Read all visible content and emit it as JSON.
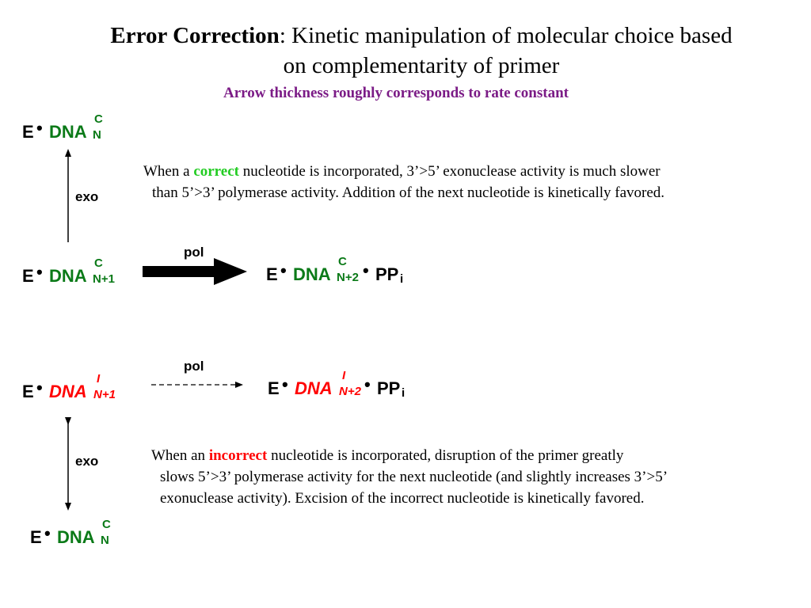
{
  "title": {
    "bold": "Error Correction",
    "rest_line1": ": Kinetic manipulation of molecular choice based",
    "line2": "on complementarity of primer"
  },
  "subtitle": "Arrow thickness roughly corresponds to rate constant",
  "complexes": {
    "top_n": {
      "e": "E",
      "dot": "•",
      "dna": "DNA",
      "sup": "C",
      "sub": "N"
    },
    "n1_correct": {
      "e": "E",
      "dot": "•",
      "dna": "DNA",
      "sup": "C",
      "sub": "N+1"
    },
    "n2_correct": {
      "e": "E",
      "dot": "•",
      "dna": "DNA",
      "sup": "C",
      "sub": "N+2",
      "dot2": "•",
      "pp": "PP",
      "ppsub": "i"
    },
    "n1_incorrect": {
      "e": "E",
      "dot": "•",
      "dna": "DNA",
      "sup": "I",
      "sub": "N+1"
    },
    "n2_incorrect": {
      "e": "E",
      "dot": "•",
      "dna": "DNA",
      "sup": "I",
      "sub": "N+2",
      "dot2": "•",
      "pp": "PP",
      "ppsub": "i"
    },
    "bottom_n": {
      "e": "E",
      "dot": "•",
      "dna": "DNA",
      "sup": "C",
      "sub": "N"
    }
  },
  "labels": {
    "exo_top": "exo",
    "pol_top": "pol",
    "pol_bottom": "pol",
    "exo_bottom": "exo"
  },
  "para_correct": {
    "line1_pre": "When a ",
    "line1_highlight": "correct",
    "line1_post": " nucleotide is incorporated, 3’>5’ exonuclease activity is much slower",
    "line2": "than 5’>3’ polymerase activity.  Addition of the next nucleotide is kinetically favored."
  },
  "para_incorrect": {
    "line1_pre": "When an ",
    "line1_highlight": "incorrect",
    "line1_post": " nucleotide is incorporated, disruption of the primer greatly",
    "line2": "slows 5’>3’ polymerase activity for the next nucleotide (and slightly increases 3’>5’",
    "line3": "exonuclease activity).  Excision of the incorrect nucleotide is kinetically favored."
  },
  "colors": {
    "correct_dna": "#0b7a18",
    "incorrect_dna": "#ff0000",
    "subtitle": "#7b1b86",
    "correct_highlight": "#22cc22",
    "incorrect_highlight": "#ff0000"
  }
}
